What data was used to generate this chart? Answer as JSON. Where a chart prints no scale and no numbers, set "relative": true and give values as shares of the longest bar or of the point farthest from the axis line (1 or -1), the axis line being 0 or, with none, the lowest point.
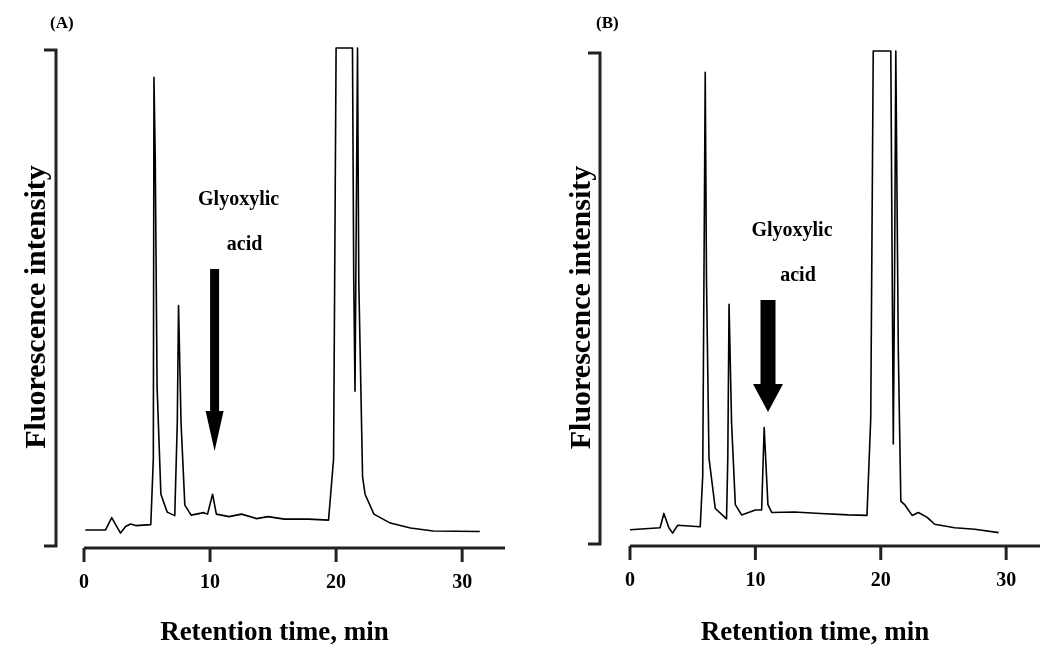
{
  "chart_data": [
    {
      "type": "line",
      "title": "(A)",
      "xlabel": "Retention time, min",
      "ylabel": "Fluorescence intensity",
      "relative": true,
      "xlim": [
        0,
        33.4
      ],
      "xticks": [
        0,
        10,
        20,
        30
      ],
      "line_style": "solid",
      "marker": "none",
      "grid": false,
      "series": [
        {
          "color": "#000000",
          "x": [
            0.1,
            1.7,
            2.2,
            2.6,
            2.9,
            3.3,
            3.7,
            4.1,
            5.3,
            5.5,
            5.55,
            5.65,
            5.8,
            6.1,
            6.6,
            7.2,
            7.4,
            7.5,
            7.7,
            8.0,
            8.5,
            9.5,
            9.8,
            10.2,
            10.5,
            11.5,
            12.5,
            13.7,
            14.6,
            15.9,
            17.8,
            19.4,
            19.8,
            20.0,
            21.3,
            21.4,
            21.5,
            21.7,
            21.8,
            22.1,
            22.3,
            23.0,
            24.3,
            25.9,
            27.7,
            31.4
          ],
          "values": [
            0.032,
            0.032,
            0.057,
            0.039,
            0.026,
            0.039,
            0.044,
            0.041,
            0.043,
            0.175,
            0.941,
            0.783,
            0.318,
            0.104,
            0.068,
            0.061,
            0.247,
            0.483,
            0.247,
            0.082,
            0.062,
            0.067,
            0.064,
            0.104,
            0.064,
            0.059,
            0.064,
            0.055,
            0.059,
            0.054,
            0.054,
            0.052,
            0.175,
            1.0,
            1.0,
            0.533,
            0.311,
            1.0,
            0.533,
            0.139,
            0.104,
            0.064,
            0.046,
            0.036,
            0.03,
            0.029
          ]
        }
      ],
      "annotations": [
        "Glyoxylic acid"
      ]
    },
    {
      "type": "line",
      "title": "(B)",
      "xlabel": "Retention time, min",
      "ylabel": "Fluorescence intensity",
      "relative": true,
      "xlim": [
        0,
        32.7
      ],
      "xticks": [
        0,
        10,
        20,
        30
      ],
      "line_style": "solid",
      "marker": "none",
      "grid": false,
      "series": [
        {
          "color": "#000000",
          "x": [
            0,
            2.4,
            2.7,
            3.1,
            3.4,
            3.8,
            5.6,
            5.8,
            6.0,
            6.1,
            6.3,
            6.8,
            7.7,
            7.8,
            7.9,
            8.1,
            8.4,
            8.9,
            10.0,
            10.5,
            10.7,
            11.0,
            11.3,
            13.1,
            15.2,
            17.4,
            18.9,
            19.2,
            19.4,
            20.8,
            21.0,
            21.1,
            21.2,
            21.4,
            21.6,
            21.9,
            22.5,
            23.0,
            23.7,
            24.3,
            25.9,
            27.5,
            29.4
          ],
          "values": [
            0.029,
            0.033,
            0.062,
            0.033,
            0.022,
            0.038,
            0.035,
            0.138,
            0.957,
            0.536,
            0.174,
            0.072,
            0.051,
            0.174,
            0.486,
            0.246,
            0.08,
            0.059,
            0.069,
            0.069,
            0.236,
            0.08,
            0.064,
            0.065,
            0.062,
            0.059,
            0.058,
            0.254,
            1.0,
            1.0,
            0.203,
            0.536,
            1.0,
            0.391,
            0.087,
            0.08,
            0.058,
            0.064,
            0.054,
            0.04,
            0.033,
            0.03,
            0.023
          ]
        }
      ],
      "annotations": [
        "Glyoxylic acid"
      ]
    }
  ]
}
